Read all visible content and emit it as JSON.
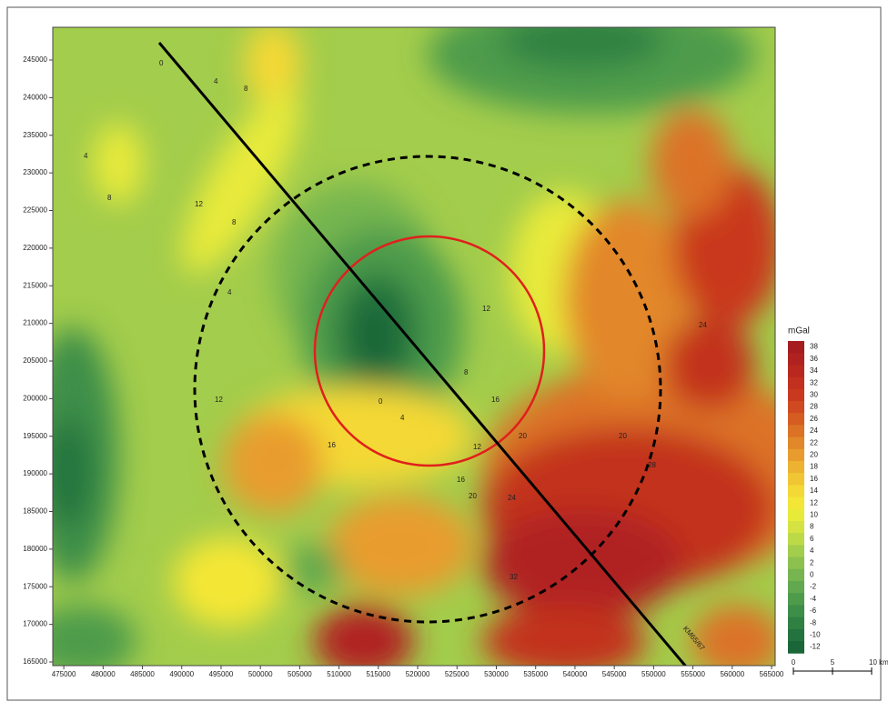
{
  "map": {
    "x_axis": {
      "lim": [
        473600,
        565460
      ],
      "ticks": [
        475000,
        480000,
        485000,
        490000,
        495000,
        500000,
        505000,
        510000,
        515000,
        520000,
        525000,
        530000,
        535000,
        540000,
        545000,
        550000,
        555000,
        560000,
        565000
      ]
    },
    "y_axis": {
      "lim": [
        164517,
        249350
      ],
      "ticks": [
        165000,
        170000,
        175000,
        180000,
        185000,
        190000,
        195000,
        200000,
        205000,
        210000,
        215000,
        220000,
        225000,
        230000,
        235000,
        240000,
        245000
      ]
    },
    "profile_label": "KM65/67",
    "colorbar": {
      "title": "mGal",
      "ticks": [
        38,
        36,
        34,
        32,
        30,
        28,
        26,
        24,
        22,
        20,
        18,
        16,
        14,
        12,
        10,
        8,
        6,
        4,
        2,
        0,
        -2,
        -4,
        -6,
        -8,
        -10,
        -12
      ],
      "colors": [
        "#a51d1f",
        "#b02220",
        "#b9281f",
        "#c2301f",
        "#c9391f",
        "#cf4a20",
        "#d65d22",
        "#dc7226",
        "#e2872a",
        "#e89c2e",
        "#edb232",
        "#f1c634",
        "#f4d836",
        "#f4e636",
        "#e8ea3a",
        "#d4e341",
        "#bcd948",
        "#a3cd4c",
        "#8cc14f",
        "#76b54f",
        "#61a84e",
        "#4e9b4c",
        "#3d8e48",
        "#2f8143",
        "#23733e",
        "#1a6638"
      ]
    },
    "scale_bar": {
      "labels": [
        "0",
        "5",
        "10 km"
      ]
    },
    "contour_labels": [
      "0",
      "4",
      "8",
      "12",
      "8",
      "4",
      "0",
      "4",
      "12",
      "16",
      "20",
      "24",
      "20",
      "16",
      "12",
      "8",
      "24",
      "28",
      "32",
      "20",
      "16",
      "12",
      "8",
      "4"
    ]
  }
}
